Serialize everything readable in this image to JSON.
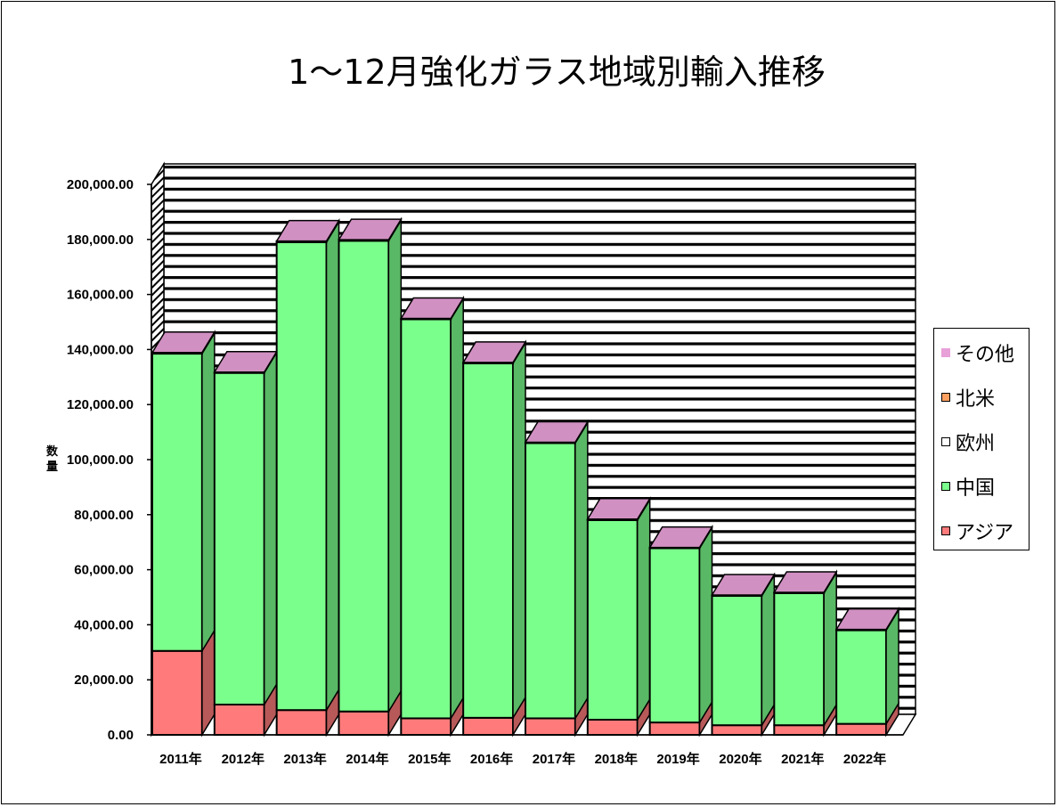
{
  "chart_data": {
    "type": "bar",
    "stacked": true,
    "three_d": true,
    "title": "1～12月強化ガラス地域別輸入推移",
    "ylabel": "数量",
    "xlabel": "",
    "ylim": [
      0,
      200000
    ],
    "ytick_values": [
      0,
      20000,
      40000,
      60000,
      80000,
      100000,
      120000,
      140000,
      160000,
      180000,
      200000
    ],
    "ytick_labels": [
      "0.00",
      "20,000.00",
      "40,000.00",
      "60,000.00",
      "80,000.00",
      "100,000.00",
      "120,000.00",
      "140,000.00",
      "160,000.00",
      "180,000.00",
      "200,000.00"
    ],
    "categories": [
      "2011年",
      "2012年",
      "2013年",
      "2014年",
      "2015年",
      "2016年",
      "2017年",
      "2018年",
      "2019年",
      "2020年",
      "2021年",
      "2022年"
    ],
    "series": [
      {
        "name": "アジア",
        "color": "#ff7b7b",
        "values": [
          30500,
          11000,
          9000,
          8500,
          6000,
          6200,
          6000,
          5500,
          4500,
          3500,
          3500,
          4000
        ]
      },
      {
        "name": "中国",
        "color": "#7bff8c",
        "values": [
          108000,
          120500,
          170000,
          171000,
          145000,
          128800,
          100000,
          72500,
          63300,
          47000,
          48000,
          34000
        ]
      },
      {
        "name": "欧州",
        "color": "#ffffff",
        "values": [
          0,
          0,
          0,
          0,
          0,
          0,
          0,
          0,
          0,
          0,
          0,
          0
        ]
      },
      {
        "name": "北米",
        "color": "#ffa060",
        "values": [
          0,
          0,
          0,
          0,
          0,
          0,
          0,
          0,
          0,
          0,
          0,
          0
        ]
      },
      {
        "name": "その他",
        "color": "#e8a0d8",
        "values": [
          400,
          300,
          400,
          400,
          300,
          300,
          300,
          400,
          300,
          300,
          300,
          300
        ]
      }
    ],
    "grid": true,
    "background_pattern": "horizontal stripes",
    "legend_position": "right"
  },
  "legend_order": [
    "その他",
    "北米",
    "欧州",
    "中国",
    "アジア"
  ]
}
